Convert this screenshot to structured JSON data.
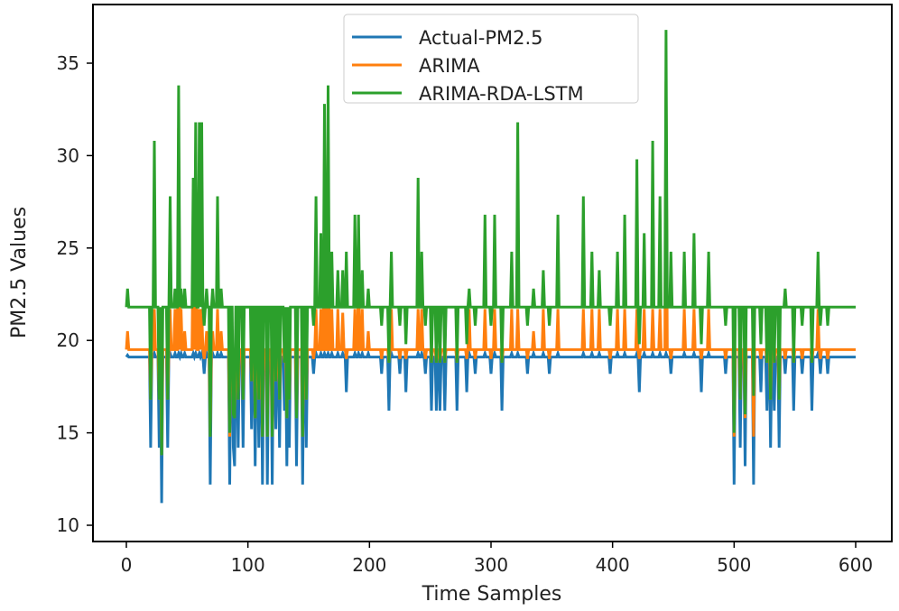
{
  "chart_data": {
    "type": "line",
    "title": "",
    "xlabel": "Time Samples",
    "ylabel": "PM2.5 Values",
    "xlim": [
      -30,
      630
    ],
    "ylim": [
      9.6,
      38.5
    ],
    "xticks": [
      0,
      100,
      200,
      300,
      400,
      500,
      600
    ],
    "yticks": [
      10,
      15,
      20,
      25,
      30,
      35
    ],
    "grid": false,
    "legend_position": "top-center",
    "x_range": [
      0,
      600
    ],
    "series": [
      {
        "name": "Actual-PM2.5",
        "color": "#1f77b4",
        "baseline": 19.1
      },
      {
        "name": "ARIMA",
        "color": "#ff7f0e",
        "baseline": 19.5
      },
      {
        "name": "ARIMA-RDA-LSTM",
        "color": "#2ca02c",
        "baseline": 21.8
      }
    ],
    "events_columns": [
      "x",
      "Actual-PM2.5",
      "ARIMA",
      "ARIMA-RDA-LSTM"
    ],
    "events": [
      [
        1,
        19.2,
        20.5,
        22.8
      ],
      [
        20,
        14.2,
        16.8,
        16.8
      ],
      [
        23,
        19.3,
        21.7,
        30.8
      ],
      [
        27,
        14.2,
        16.8,
        16.8
      ],
      [
        29,
        11.2,
        13.8,
        13.8
      ],
      [
        34,
        14.2,
        16.8,
        16.8
      ],
      [
        36,
        19.3,
        21.7,
        27.8
      ],
      [
        40,
        19.3,
        21.7,
        22.8
      ],
      [
        43,
        19.3,
        31.5,
        33.8
      ],
      [
        45,
        19.3,
        21.7,
        22.8
      ],
      [
        48,
        19.3,
        20.5,
        22.8
      ],
      [
        55,
        19.3,
        26.0,
        28.8
      ],
      [
        57,
        19.3,
        29.0,
        31.8
      ],
      [
        60,
        19.3,
        21.7,
        31.8
      ],
      [
        62,
        19.3,
        21.7,
        31.8
      ],
      [
        64,
        18.2,
        19.0,
        20.8
      ],
      [
        66,
        19.3,
        20.5,
        22.8
      ],
      [
        69,
        12.2,
        14.8,
        14.8
      ],
      [
        71,
        19.3,
        20.5,
        22.8
      ],
      [
        75,
        19.3,
        21.7,
        27.8
      ],
      [
        78,
        19.3,
        20.5,
        22.8
      ],
      [
        85,
        12.2,
        14.8,
        15.0
      ],
      [
        88,
        14.2,
        16.8,
        16.0
      ],
      [
        89,
        13.2,
        15.8,
        15.8
      ],
      [
        92,
        14.2,
        16.8,
        16.8
      ],
      [
        96,
        14.2,
        16.8,
        16.8
      ],
      [
        103,
        15.2,
        17.8,
        17.8
      ],
      [
        106,
        13.2,
        15.8,
        15.8
      ],
      [
        109,
        14.2,
        16.8,
        16.8
      ],
      [
        112,
        12.2,
        14.8,
        14.8
      ],
      [
        116,
        12.2,
        14.8,
        14.8
      ],
      [
        120,
        12.2,
        14.8,
        14.8
      ],
      [
        123,
        15.2,
        17.8,
        17.8
      ],
      [
        126,
        14.2,
        16.8,
        16.8
      ],
      [
        130,
        16.2,
        18.8,
        18.8
      ],
      [
        132,
        13.2,
        15.8,
        15.8
      ],
      [
        134,
        14.2,
        16.8,
        16.8
      ],
      [
        140,
        13.2,
        15.8,
        15.8
      ],
      [
        145,
        12.2,
        14.8,
        14.8
      ],
      [
        148,
        14.2,
        16.8,
        16.8
      ],
      [
        154,
        18.2,
        19.0,
        20.8
      ],
      [
        156,
        19.3,
        21.7,
        27.8
      ],
      [
        160,
        19.3,
        21.7,
        25.8
      ],
      [
        163,
        19.3,
        30.0,
        32.8
      ],
      [
        166,
        19.3,
        31.0,
        33.8
      ],
      [
        169,
        19.3,
        21.7,
        24.8
      ],
      [
        174,
        19.3,
        21.7,
        23.8
      ],
      [
        178,
        19.3,
        21.5,
        23.8
      ],
      [
        181,
        17.2,
        19.0,
        24.8
      ],
      [
        188,
        19.3,
        21.7,
        26.8
      ],
      [
        191,
        19.3,
        24.0,
        26.8
      ],
      [
        194,
        19.3,
        21.7,
        23.8
      ],
      [
        199,
        19.3,
        20.5,
        22.8
      ],
      [
        210,
        18.2,
        19.0,
        20.8
      ],
      [
        216,
        16.2,
        18.8,
        18.8
      ],
      [
        218,
        19.3,
        21.7,
        24.8
      ],
      [
        225,
        18.2,
        19.0,
        20.8
      ],
      [
        230,
        17.2,
        19.0,
        19.8
      ],
      [
        240,
        19.3,
        21.7,
        28.8
      ],
      [
        243,
        19.3,
        21.7,
        24.8
      ],
      [
        246,
        18.2,
        19.0,
        20.8
      ],
      [
        251,
        16.2,
        18.8,
        18.8
      ],
      [
        255,
        16.2,
        18.8,
        18.8
      ],
      [
        258,
        16.2,
        18.8,
        18.8
      ],
      [
        262,
        16.2,
        18.8,
        18.8
      ],
      [
        272,
        16.2,
        18.8,
        18.8
      ],
      [
        280,
        17.2,
        19.0,
        19.8
      ],
      [
        282,
        19.3,
        21.7,
        22.8
      ],
      [
        287,
        18.2,
        19.0,
        20.8
      ],
      [
        295,
        19.3,
        21.7,
        26.8
      ],
      [
        300,
        18.2,
        19.0,
        20.8
      ],
      [
        303,
        19.3,
        21.7,
        26.8
      ],
      [
        309,
        16.2,
        18.8,
        18.8
      ],
      [
        317,
        19.3,
        21.7,
        24.8
      ],
      [
        322,
        19.3,
        21.7,
        31.8
      ],
      [
        330,
        18.2,
        19.0,
        20.8
      ],
      [
        335,
        19.3,
        20.5,
        22.8
      ],
      [
        343,
        19.3,
        21.7,
        23.8
      ],
      [
        348,
        18.2,
        19.0,
        20.8
      ],
      [
        355,
        19.3,
        21.7,
        26.8
      ],
      [
        376,
        19.3,
        21.7,
        27.8
      ],
      [
        383,
        19.3,
        21.7,
        24.8
      ],
      [
        389,
        19.3,
        21.7,
        23.8
      ],
      [
        398,
        18.2,
        19.0,
        20.8
      ],
      [
        404,
        19.3,
        21.7,
        24.8
      ],
      [
        410,
        19.3,
        21.7,
        26.8
      ],
      [
        420,
        19.3,
        21.7,
        29.8
      ],
      [
        422,
        17.2,
        19.0,
        19.8
      ],
      [
        426,
        19.3,
        21.7,
        25.8
      ],
      [
        433,
        19.3,
        21.7,
        30.8
      ],
      [
        439,
        19.3,
        21.7,
        27.8
      ],
      [
        444,
        19.3,
        34.0,
        36.8
      ],
      [
        448,
        18.2,
        19.0,
        24.8
      ],
      [
        459,
        19.3,
        21.7,
        24.8
      ],
      [
        467,
        19.3,
        21.7,
        25.8
      ],
      [
        473,
        17.2,
        19.0,
        19.8
      ],
      [
        479,
        19.3,
        21.7,
        24.8
      ],
      [
        493,
        18.2,
        19.0,
        20.8
      ],
      [
        500,
        12.2,
        14.8,
        15.0
      ],
      [
        505,
        14.2,
        16.8,
        16.8
      ],
      [
        509,
        13.2,
        15.8,
        16.0
      ],
      [
        516,
        12.2,
        14.8,
        17.0
      ],
      [
        522,
        17.2,
        19.0,
        19.8
      ],
      [
        527,
        16.2,
        18.8,
        18.8
      ],
      [
        530,
        14.2,
        16.8,
        16.8
      ],
      [
        533,
        16.2,
        18.8,
        18.8
      ],
      [
        537,
        14.2,
        16.8,
        16.8
      ],
      [
        542,
        18.2,
        19.0,
        22.8
      ],
      [
        549,
        16.2,
        18.8,
        18.8
      ],
      [
        556,
        18.2,
        19.0,
        20.8
      ],
      [
        564,
        16.2,
        18.8,
        18.8
      ],
      [
        569,
        19.3,
        21.7,
        24.8
      ],
      [
        571,
        18.2,
        19.0,
        20.8
      ],
      [
        577,
        18.2,
        19.0,
        20.8
      ]
    ]
  }
}
